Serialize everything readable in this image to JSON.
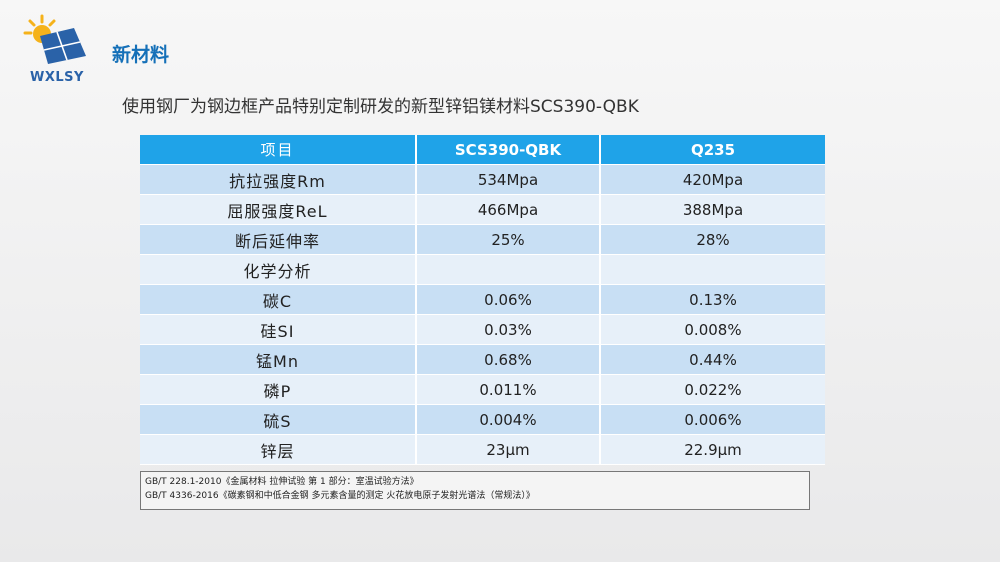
{
  "logo": {
    "text": "WXLSY"
  },
  "section_title": "新材料",
  "subtitle": "使用钢厂为钢边框产品特别定制研发的新型锌铝镁材料SCS390-QBK",
  "table": {
    "headers": [
      "项目",
      "SCS390-QBK",
      "Q235"
    ],
    "rows": [
      [
        "抗拉强度Rm",
        "534Mpa",
        "420Mpa"
      ],
      [
        "屈服强度ReL",
        "466Mpa",
        "388Mpa"
      ],
      [
        "断后延伸率",
        "25%",
        "28%"
      ],
      [
        "化学分析",
        "",
        ""
      ],
      [
        "碳C",
        "0.06%",
        "0.13%"
      ],
      [
        "硅SI",
        "0.03%",
        "0.008%"
      ],
      [
        "锰Mn",
        "0.68%",
        "0.44%"
      ],
      [
        "磷P",
        "0.011%",
        "0.022%"
      ],
      [
        "硫S",
        "0.004%",
        "0.006%"
      ],
      [
        "锌层",
        "23μm",
        "22.9μm"
      ]
    ]
  },
  "references": [
    "GB/T 228.1-2010《金属材料 拉伸试验 第 1 部分：室温试验方法》",
    "GB/T 4336-2016《碳素钢和中低合金钢 多元素含量的测定 火花放电原子发射光谱法（常规法）》"
  ],
  "colors": {
    "header": "#1fa3e8",
    "row_dark": "#c8dff4",
    "row_light": "#e7f0f9",
    "title": "#1570b8"
  }
}
